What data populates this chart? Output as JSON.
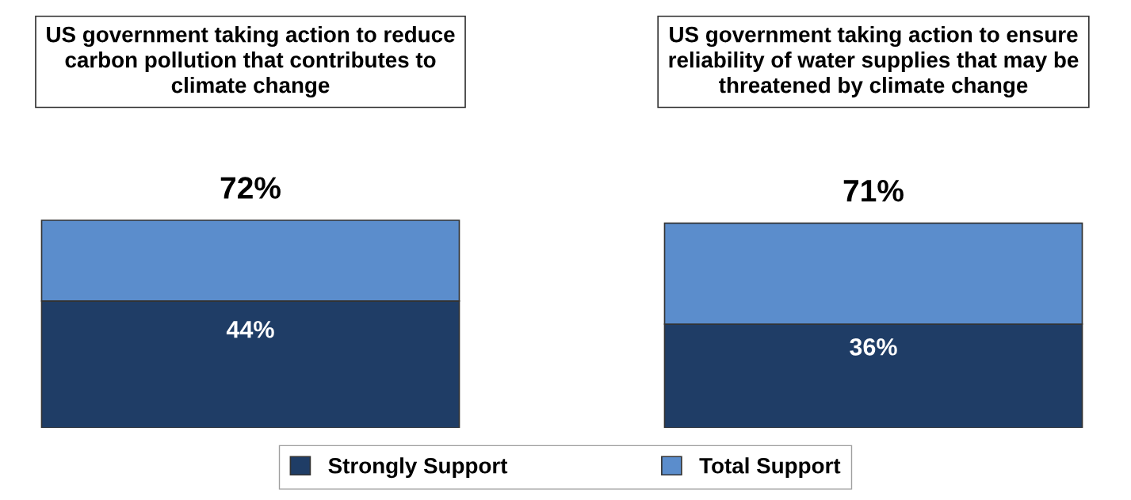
{
  "chart_data": {
    "type": "bar",
    "stacked": true,
    "categories": [
      "US government taking action to reduce\ncarbon pollution that contributes to\nclimate change",
      "US government taking action to ensure\nreliability of water supplies that may be\nthreatened by climate change"
    ],
    "series": [
      {
        "name": "Strongly Support",
        "color": "#1f3d66",
        "values": [
          44,
          36
        ],
        "value_labels": [
          "44%",
          "36%"
        ]
      },
      {
        "name": "Total Support",
        "color": "#5b8dcc",
        "values": [
          28,
          35
        ]
      }
    ],
    "totals": [
      "72%",
      "71%"
    ],
    "legend": "bottom"
  }
}
